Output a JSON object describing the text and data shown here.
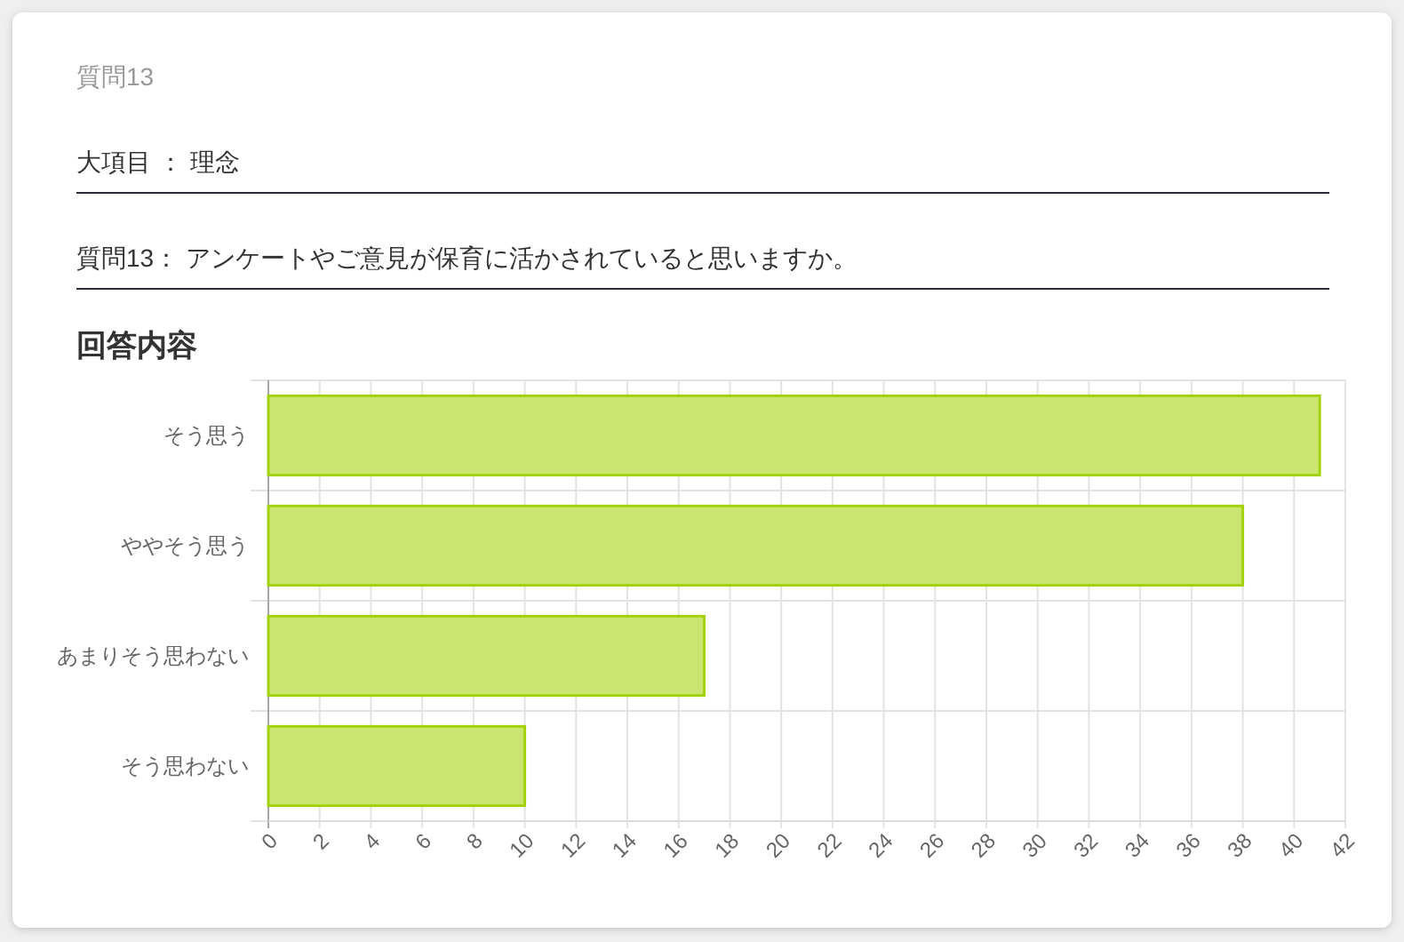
{
  "chart_data": {
    "type": "bar",
    "orientation": "horizontal",
    "title": "回答内容",
    "annotations": [
      "質問13",
      "大項目 ： 理念",
      "質問13： アンケートやご意見が保育に活かされていると思いますか。"
    ],
    "categories": [
      "そう思う",
      "ややそう思う",
      "あまりそう思わない",
      "そう思わない"
    ],
    "values": [
      41,
      38,
      17,
      10
    ],
    "color": "#cbe670",
    "xlim": [
      0,
      42
    ],
    "xticks": [
      0,
      2,
      4,
      6,
      8,
      10,
      12,
      14,
      16,
      18,
      20,
      22,
      24,
      26,
      28,
      30,
      32,
      34,
      36,
      38,
      40,
      42
    ],
    "grid": true
  }
}
